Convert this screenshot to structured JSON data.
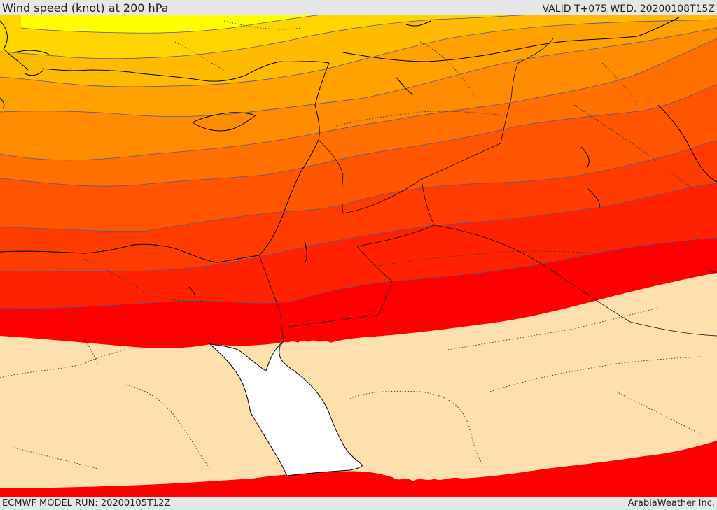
{
  "header": {
    "title": "Wind speed (knot) at 200 hPa",
    "valid": "VALID T+075 WED. 20200108T15Z"
  },
  "footer": {
    "model_run": "ECMWF MODEL RUN: 20200105T12Z",
    "credit": "ArabiaWeather Inc."
  },
  "colors": {
    "band_1": "#ffff00",
    "band_2": "#ffd500",
    "band_3": "#ffbb00",
    "band_4": "#ffa200",
    "band_5": "#ff8c00",
    "band_6": "#ff7000",
    "band_7": "#ff5500",
    "band_8": "#ff3c00",
    "band_9": "#ff2200",
    "band_10": "#ff0000",
    "low_wind": "#fde0ae",
    "sea": "#ffffff",
    "coast": "#000000"
  }
}
